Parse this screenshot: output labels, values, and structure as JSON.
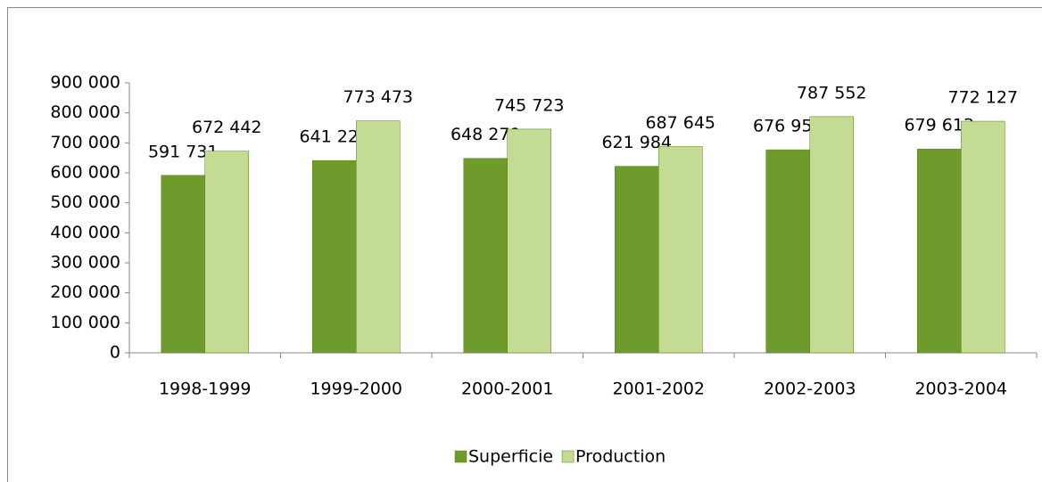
{
  "chart_data": {
    "type": "bar",
    "categories": [
      "1998-1999",
      "1999-2000",
      "2000-2001",
      "2001-2002",
      "2002-2003",
      "2003-2004"
    ],
    "series": [
      {
        "name": "Superficie",
        "color": "#6e9b2c",
        "values": [
          591731,
          641229,
          648279,
          621984,
          676956,
          679613
        ],
        "value_labels": [
          "591 731",
          "641 229",
          "648 279",
          "621 984",
          "676 956",
          "679 613"
        ]
      },
      {
        "name": "Production",
        "color": "#c3db92",
        "values": [
          672442,
          773473,
          745723,
          687645,
          787552,
          772127
        ],
        "value_labels": [
          "672 442",
          "773 473",
          "745 723",
          "687 645",
          "787 552",
          "772 127"
        ]
      }
    ],
    "ylim": [
      0,
      900000
    ],
    "yticks": [
      0,
      {
        "value": 100000,
        "label": "100 000"
      },
      {
        "value": 200000,
        "label": "200 000"
      },
      {
        "value": 300000,
        "label": "300 000"
      },
      {
        "value": 400000,
        "label": "400 000"
      },
      {
        "value": 500000,
        "label": "500 000"
      },
      {
        "value": 600000,
        "label": "600 000"
      },
      {
        "value": 700000,
        "label": "700 000"
      },
      {
        "value": 800000,
        "label": "800 000"
      },
      {
        "value": 900000,
        "label": "900 000"
      }
    ],
    "legend": "bottom",
    "grid": false
  }
}
